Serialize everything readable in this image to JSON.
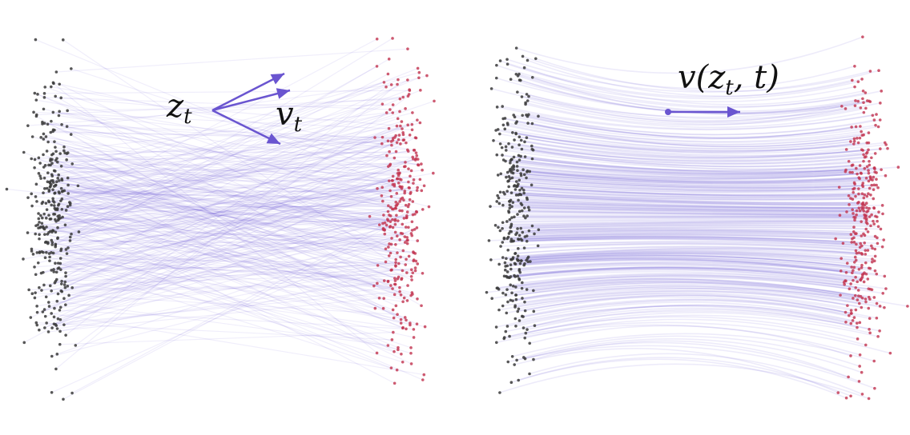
{
  "colors": {
    "source_points": "#3a3a3a",
    "target_points": "#c2324e",
    "paths": "#6a5ad8",
    "arrows": "#6a55d0"
  },
  "left_panel": {
    "label_z": "z",
    "label_z_sub": "t",
    "label_v": "v",
    "label_v_sub": "t"
  },
  "right_panel": {
    "label_prefix": "v(",
    "label_z": "z",
    "label_z_sub": "t",
    "label_suffix": ", t)"
  }
}
